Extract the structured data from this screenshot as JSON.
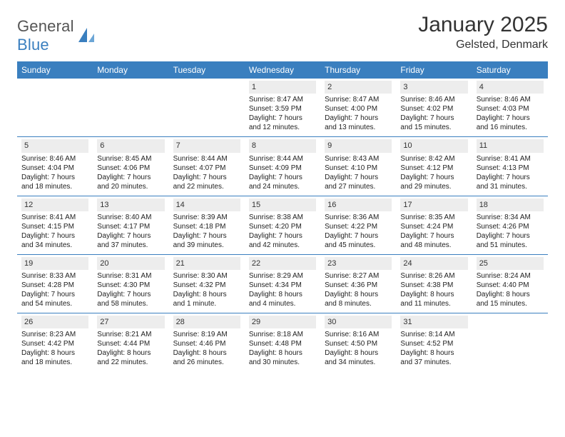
{
  "brand": {
    "part1": "General",
    "part2": "Blue"
  },
  "title": "January 2025",
  "location": "Gelsted, Denmark",
  "colors": {
    "header_bg": "#3a7fbf",
    "header_text": "#ffffff",
    "daynum_bg": "#ededed",
    "row_divider_blue": "#3a7fbf",
    "text": "#2b2b2b",
    "background": "#ffffff"
  },
  "typography": {
    "title_fontsize": 30,
    "location_fontsize": 16,
    "weekday_fontsize": 12,
    "cell_fontsize": 10
  },
  "weekdays": [
    "Sunday",
    "Monday",
    "Tuesday",
    "Wednesday",
    "Thursday",
    "Friday",
    "Saturday"
  ],
  "weeks": [
    [
      null,
      null,
      null,
      {
        "n": "1",
        "sr": "Sunrise: 8:47 AM",
        "ss": "Sunset: 3:59 PM",
        "d1": "Daylight: 7 hours",
        "d2": "and 12 minutes."
      },
      {
        "n": "2",
        "sr": "Sunrise: 8:47 AM",
        "ss": "Sunset: 4:00 PM",
        "d1": "Daylight: 7 hours",
        "d2": "and 13 minutes."
      },
      {
        "n": "3",
        "sr": "Sunrise: 8:46 AM",
        "ss": "Sunset: 4:02 PM",
        "d1": "Daylight: 7 hours",
        "d2": "and 15 minutes."
      },
      {
        "n": "4",
        "sr": "Sunrise: 8:46 AM",
        "ss": "Sunset: 4:03 PM",
        "d1": "Daylight: 7 hours",
        "d2": "and 16 minutes."
      }
    ],
    [
      {
        "n": "5",
        "sr": "Sunrise: 8:46 AM",
        "ss": "Sunset: 4:04 PM",
        "d1": "Daylight: 7 hours",
        "d2": "and 18 minutes."
      },
      {
        "n": "6",
        "sr": "Sunrise: 8:45 AM",
        "ss": "Sunset: 4:06 PM",
        "d1": "Daylight: 7 hours",
        "d2": "and 20 minutes."
      },
      {
        "n": "7",
        "sr": "Sunrise: 8:44 AM",
        "ss": "Sunset: 4:07 PM",
        "d1": "Daylight: 7 hours",
        "d2": "and 22 minutes."
      },
      {
        "n": "8",
        "sr": "Sunrise: 8:44 AM",
        "ss": "Sunset: 4:09 PM",
        "d1": "Daylight: 7 hours",
        "d2": "and 24 minutes."
      },
      {
        "n": "9",
        "sr": "Sunrise: 8:43 AM",
        "ss": "Sunset: 4:10 PM",
        "d1": "Daylight: 7 hours",
        "d2": "and 27 minutes."
      },
      {
        "n": "10",
        "sr": "Sunrise: 8:42 AM",
        "ss": "Sunset: 4:12 PM",
        "d1": "Daylight: 7 hours",
        "d2": "and 29 minutes."
      },
      {
        "n": "11",
        "sr": "Sunrise: 8:41 AM",
        "ss": "Sunset: 4:13 PM",
        "d1": "Daylight: 7 hours",
        "d2": "and 31 minutes."
      }
    ],
    [
      {
        "n": "12",
        "sr": "Sunrise: 8:41 AM",
        "ss": "Sunset: 4:15 PM",
        "d1": "Daylight: 7 hours",
        "d2": "and 34 minutes."
      },
      {
        "n": "13",
        "sr": "Sunrise: 8:40 AM",
        "ss": "Sunset: 4:17 PM",
        "d1": "Daylight: 7 hours",
        "d2": "and 37 minutes."
      },
      {
        "n": "14",
        "sr": "Sunrise: 8:39 AM",
        "ss": "Sunset: 4:18 PM",
        "d1": "Daylight: 7 hours",
        "d2": "and 39 minutes."
      },
      {
        "n": "15",
        "sr": "Sunrise: 8:38 AM",
        "ss": "Sunset: 4:20 PM",
        "d1": "Daylight: 7 hours",
        "d2": "and 42 minutes."
      },
      {
        "n": "16",
        "sr": "Sunrise: 8:36 AM",
        "ss": "Sunset: 4:22 PM",
        "d1": "Daylight: 7 hours",
        "d2": "and 45 minutes."
      },
      {
        "n": "17",
        "sr": "Sunrise: 8:35 AM",
        "ss": "Sunset: 4:24 PM",
        "d1": "Daylight: 7 hours",
        "d2": "and 48 minutes."
      },
      {
        "n": "18",
        "sr": "Sunrise: 8:34 AM",
        "ss": "Sunset: 4:26 PM",
        "d1": "Daylight: 7 hours",
        "d2": "and 51 minutes."
      }
    ],
    [
      {
        "n": "19",
        "sr": "Sunrise: 8:33 AM",
        "ss": "Sunset: 4:28 PM",
        "d1": "Daylight: 7 hours",
        "d2": "and 54 minutes."
      },
      {
        "n": "20",
        "sr": "Sunrise: 8:31 AM",
        "ss": "Sunset: 4:30 PM",
        "d1": "Daylight: 7 hours",
        "d2": "and 58 minutes."
      },
      {
        "n": "21",
        "sr": "Sunrise: 8:30 AM",
        "ss": "Sunset: 4:32 PM",
        "d1": "Daylight: 8 hours",
        "d2": "and 1 minute."
      },
      {
        "n": "22",
        "sr": "Sunrise: 8:29 AM",
        "ss": "Sunset: 4:34 PM",
        "d1": "Daylight: 8 hours",
        "d2": "and 4 minutes."
      },
      {
        "n": "23",
        "sr": "Sunrise: 8:27 AM",
        "ss": "Sunset: 4:36 PM",
        "d1": "Daylight: 8 hours",
        "d2": "and 8 minutes."
      },
      {
        "n": "24",
        "sr": "Sunrise: 8:26 AM",
        "ss": "Sunset: 4:38 PM",
        "d1": "Daylight: 8 hours",
        "d2": "and 11 minutes."
      },
      {
        "n": "25",
        "sr": "Sunrise: 8:24 AM",
        "ss": "Sunset: 4:40 PM",
        "d1": "Daylight: 8 hours",
        "d2": "and 15 minutes."
      }
    ],
    [
      {
        "n": "26",
        "sr": "Sunrise: 8:23 AM",
        "ss": "Sunset: 4:42 PM",
        "d1": "Daylight: 8 hours",
        "d2": "and 18 minutes."
      },
      {
        "n": "27",
        "sr": "Sunrise: 8:21 AM",
        "ss": "Sunset: 4:44 PM",
        "d1": "Daylight: 8 hours",
        "d2": "and 22 minutes."
      },
      {
        "n": "28",
        "sr": "Sunrise: 8:19 AM",
        "ss": "Sunset: 4:46 PM",
        "d1": "Daylight: 8 hours",
        "d2": "and 26 minutes."
      },
      {
        "n": "29",
        "sr": "Sunrise: 8:18 AM",
        "ss": "Sunset: 4:48 PM",
        "d1": "Daylight: 8 hours",
        "d2": "and 30 minutes."
      },
      {
        "n": "30",
        "sr": "Sunrise: 8:16 AM",
        "ss": "Sunset: 4:50 PM",
        "d1": "Daylight: 8 hours",
        "d2": "and 34 minutes."
      },
      {
        "n": "31",
        "sr": "Sunrise: 8:14 AM",
        "ss": "Sunset: 4:52 PM",
        "d1": "Daylight: 8 hours",
        "d2": "and 37 minutes."
      },
      null
    ]
  ]
}
